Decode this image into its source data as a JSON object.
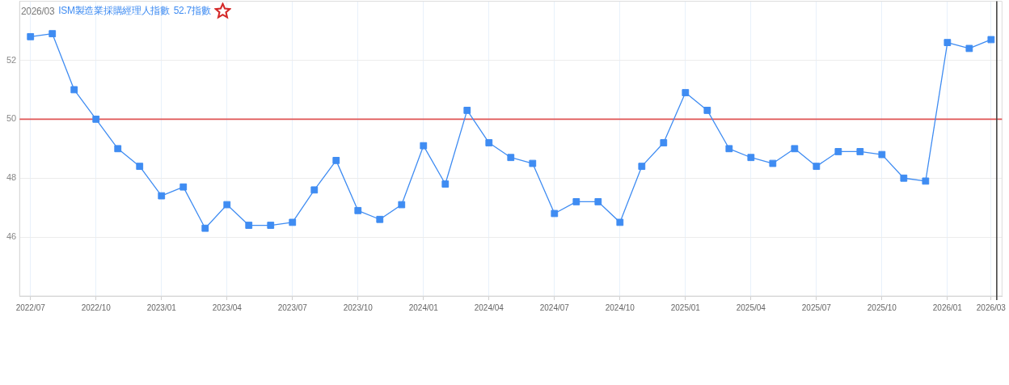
{
  "chart_data": {
    "type": "line",
    "title": "2026/03",
    "legend": "top left",
    "marker": "square",
    "line_style": "solid",
    "grid": true,
    "categories": [
      "2022/07",
      null,
      null,
      "2022/10",
      null,
      null,
      "2023/01",
      null,
      null,
      "2023/04",
      null,
      null,
      "2023/07",
      null,
      null,
      "2023/10",
      null,
      null,
      "2024/01",
      null,
      null,
      "2024/04",
      null,
      null,
      "2024/07",
      null,
      null,
      "2024/10",
      null,
      null,
      "2025/01",
      null,
      null,
      "2025/04",
      null,
      null,
      "2025/07",
      null,
      null,
      "2025/10",
      null,
      null,
      "2026/01",
      null,
      "2026/03"
    ],
    "series": [
      {
        "name": "ISM製造業採購經理人指數",
        "color": "#3f8cf2",
        "values": [
          52.8,
          52.9,
          51.0,
          50.0,
          49.0,
          48.4,
          47.4,
          47.7,
          46.3,
          47.1,
          46.4,
          46.4,
          46.5,
          47.6,
          48.6,
          46.9,
          46.6,
          47.1,
          49.1,
          47.8,
          50.3,
          49.2,
          48.7,
          48.5,
          46.8,
          47.2,
          47.2,
          46.5,
          48.4,
          49.2,
          50.9,
          50.3,
          49.0,
          48.7,
          48.5,
          49.0,
          48.4,
          48.9,
          48.9,
          48.8,
          48.0,
          47.9,
          52.6,
          52.4,
          52.7
        ]
      }
    ],
    "annotations": [
      "52.7指數"
    ],
    "ylim": [
      44,
      54
    ],
    "yticks": [
      46,
      48,
      50,
      52
    ],
    "ref_lines": [
      {
        "axis": "y",
        "value": 50,
        "color": "#e05555"
      },
      {
        "axis": "x",
        "value": "2026/03",
        "color": "#444444"
      }
    ]
  }
}
